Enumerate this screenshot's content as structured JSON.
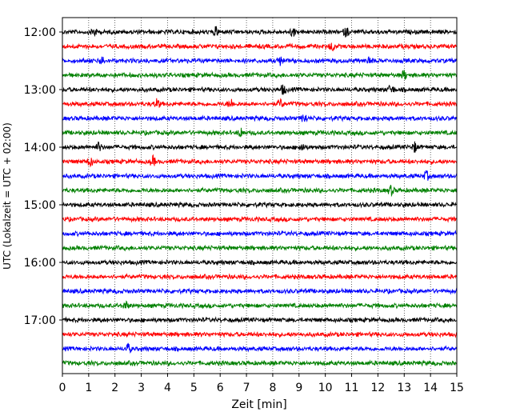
{
  "chart_data": {
    "type": "line",
    "title": "",
    "xlabel": "Zeit  [min]",
    "ylabel": "UTC (Lokalzeit = UTC + 02:00)",
    "xlim": [
      0,
      15
    ],
    "x_ticks": [
      "0",
      "1",
      "2",
      "3",
      "4",
      "5",
      "6",
      "7",
      "8",
      "9",
      "10",
      "11",
      "12",
      "13",
      "14",
      "15"
    ],
    "y_tick_labels": [
      "12:00",
      "13:00",
      "14:00",
      "15:00",
      "16:00",
      "17:00"
    ],
    "grid": "vertical dotted lines at each minute",
    "trace_interval_min": 15,
    "colors_cycle": [
      "#000000",
      "#ff0000",
      "#0000ff",
      "#008000"
    ],
    "series": [
      {
        "start": "12:00",
        "color": "#000000",
        "events_min": [
          1.2,
          5.85,
          8.75,
          10.8
        ]
      },
      {
        "start": "12:15",
        "color": "#ff0000",
        "events_min": [
          10.25
        ]
      },
      {
        "start": "12:30",
        "color": "#0000ff",
        "events_min": [
          1.5,
          8.3,
          11.7
        ]
      },
      {
        "start": "12:45",
        "color": "#008000",
        "events_min": [
          13.0
        ]
      },
      {
        "start": "13:00",
        "color": "#000000",
        "events_min": [
          8.4,
          12.5
        ]
      },
      {
        "start": "13:15",
        "color": "#ff0000",
        "events_min": [
          3.6,
          6.4,
          8.3
        ]
      },
      {
        "start": "13:30",
        "color": "#0000ff",
        "events_min": [
          9.2
        ]
      },
      {
        "start": "13:45",
        "color": "#008000",
        "events_min": [
          6.8
        ]
      },
      {
        "start": "14:00",
        "color": "#000000",
        "events_min": [
          1.4,
          9.1,
          13.4
        ]
      },
      {
        "start": "14:15",
        "color": "#ff0000",
        "events_min": [
          1.05,
          3.45
        ]
      },
      {
        "start": "14:30",
        "color": "#0000ff",
        "events_min": [
          13.85
        ]
      },
      {
        "start": "14:45",
        "color": "#008000",
        "events_min": [
          12.5
        ]
      },
      {
        "start": "15:00",
        "color": "#000000",
        "events_min": []
      },
      {
        "start": "15:15",
        "color": "#ff0000",
        "events_min": []
      },
      {
        "start": "15:30",
        "color": "#0000ff",
        "events_min": []
      },
      {
        "start": "15:45",
        "color": "#008000",
        "events_min": []
      },
      {
        "start": "16:00",
        "color": "#000000",
        "events_min": []
      },
      {
        "start": "16:15",
        "color": "#ff0000",
        "events_min": []
      },
      {
        "start": "16:30",
        "color": "#0000ff",
        "events_min": []
      },
      {
        "start": "16:45",
        "color": "#008000",
        "events_min": [
          2.4
        ]
      },
      {
        "start": "17:00",
        "color": "#000000",
        "events_min": []
      },
      {
        "start": "17:15",
        "color": "#ff0000",
        "events_min": []
      },
      {
        "start": "17:30",
        "color": "#0000ff",
        "events_min": [
          2.5
        ]
      },
      {
        "start": "17:45",
        "color": "#008000",
        "events_min": []
      }
    ]
  }
}
